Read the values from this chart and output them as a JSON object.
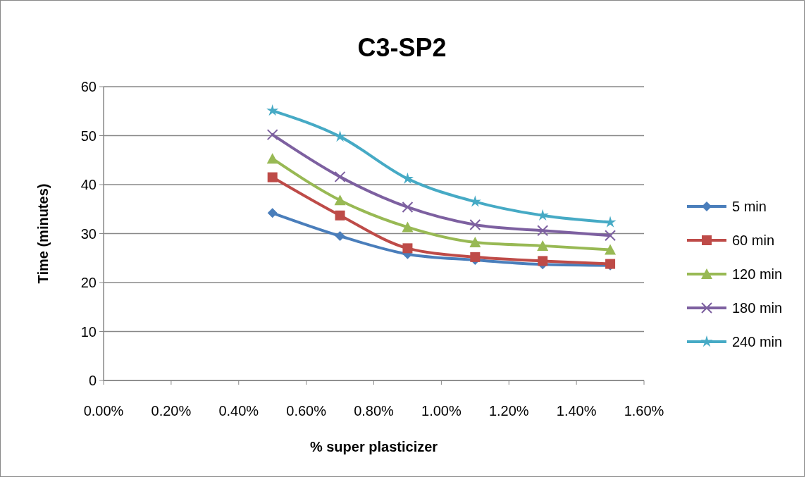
{
  "chart_data": {
    "type": "line",
    "title": "C3-SP2",
    "xlabel": "% super plasticizer",
    "ylabel": "Time (minutes)",
    "x": [
      0.5,
      0.7,
      0.9,
      1.1,
      1.3,
      1.5
    ],
    "xlim": [
      0,
      1.6
    ],
    "xticks": [
      {
        "value": 0,
        "label": "0.00%"
      },
      {
        "value": 0.2,
        "label": "0.20%"
      },
      {
        "value": 0.4,
        "label": "0.40%"
      },
      {
        "value": 0.6,
        "label": "0.60%"
      },
      {
        "value": 0.8,
        "label": "0.80%"
      },
      {
        "value": 1.0,
        "label": "1.00%"
      },
      {
        "value": 1.2,
        "label": "1.20%"
      },
      {
        "value": 1.4,
        "label": "1.40%"
      },
      {
        "value": 1.6,
        "label": "1.60%"
      }
    ],
    "ylim": [
      0,
      60
    ],
    "yticks": [
      0,
      10,
      20,
      30,
      40,
      50,
      60
    ],
    "grid": "y",
    "legend": "right",
    "series": [
      {
        "name": "5 min",
        "color": "#4a7ebb",
        "marker": "diamond",
        "values": [
          34.2,
          29.5,
          25.8,
          24.6,
          23.7,
          23.5
        ]
      },
      {
        "name": "60 min",
        "color": "#be4b48",
        "marker": "square",
        "values": [
          41.5,
          33.7,
          27.0,
          25.2,
          24.4,
          23.8
        ]
      },
      {
        "name": "120 min",
        "color": "#98b954",
        "marker": "triangle",
        "values": [
          45.3,
          36.8,
          31.3,
          28.2,
          27.5,
          26.7
        ]
      },
      {
        "name": "180 min",
        "color": "#7d60a0",
        "marker": "cross",
        "values": [
          50.2,
          41.6,
          35.4,
          31.8,
          30.6,
          29.6
        ]
      },
      {
        "name": "240 min",
        "color": "#46aac5",
        "marker": "star",
        "values": [
          55.1,
          49.8,
          41.2,
          36.5,
          33.7,
          32.3
        ]
      }
    ]
  }
}
